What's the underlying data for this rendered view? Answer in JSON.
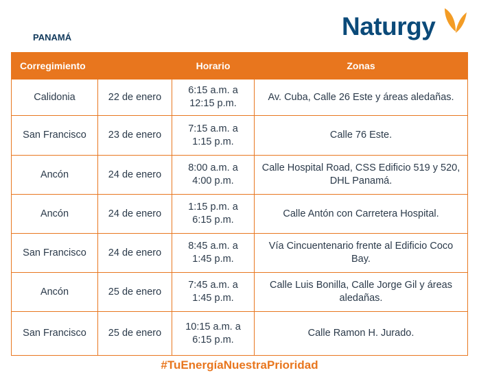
{
  "header": {
    "region": "PANAMÁ",
    "logo": "Naturgy"
  },
  "table": {
    "columns": [
      "Corregimiento",
      "Horario",
      "Zonas"
    ],
    "rows": [
      [
        "Calidonia",
        "22 de enero",
        [
          "6:15 a.m. a",
          "12:15 p.m."
        ],
        "Av. Cuba, Calle 26 Este y áreas aledañas."
      ],
      [
        "San Francisco",
        "23 de enero",
        [
          "7:15 a.m. a",
          "1:15 p.m."
        ],
        "Calle 76 Este."
      ],
      [
        "Ancón",
        "24 de enero",
        [
          "8:00 a.m. a",
          "4:00 p.m."
        ],
        "Calle Hospital Road, CSS Edificio 519 y 520, DHL Panamá."
      ],
      [
        "Ancón",
        "24 de enero",
        [
          "1:15 p.m. a",
          "6:15 p.m."
        ],
        "Calle Antón con Carretera Hospital."
      ],
      [
        "San Francisco",
        "24 de enero",
        [
          "8:45 a.m. a",
          "1:45 p.m."
        ],
        "Vía Cincuentenario frente al Edificio Coco Bay."
      ],
      [
        "Ancón",
        "25 de enero",
        [
          "7:45 a.m. a",
          "1:45 p.m."
        ],
        "Calle Luis Bonilla, Calle Jorge Gil y áreas aledañas."
      ],
      [
        "San Francisco",
        "25 de enero",
        [
          "10:15 a.m. a",
          "6:15 p.m."
        ],
        "Calle Ramon H. Jurado."
      ]
    ]
  },
  "footer": {
    "hashtag": "#TuEnergíaNuestraPrioridad"
  }
}
